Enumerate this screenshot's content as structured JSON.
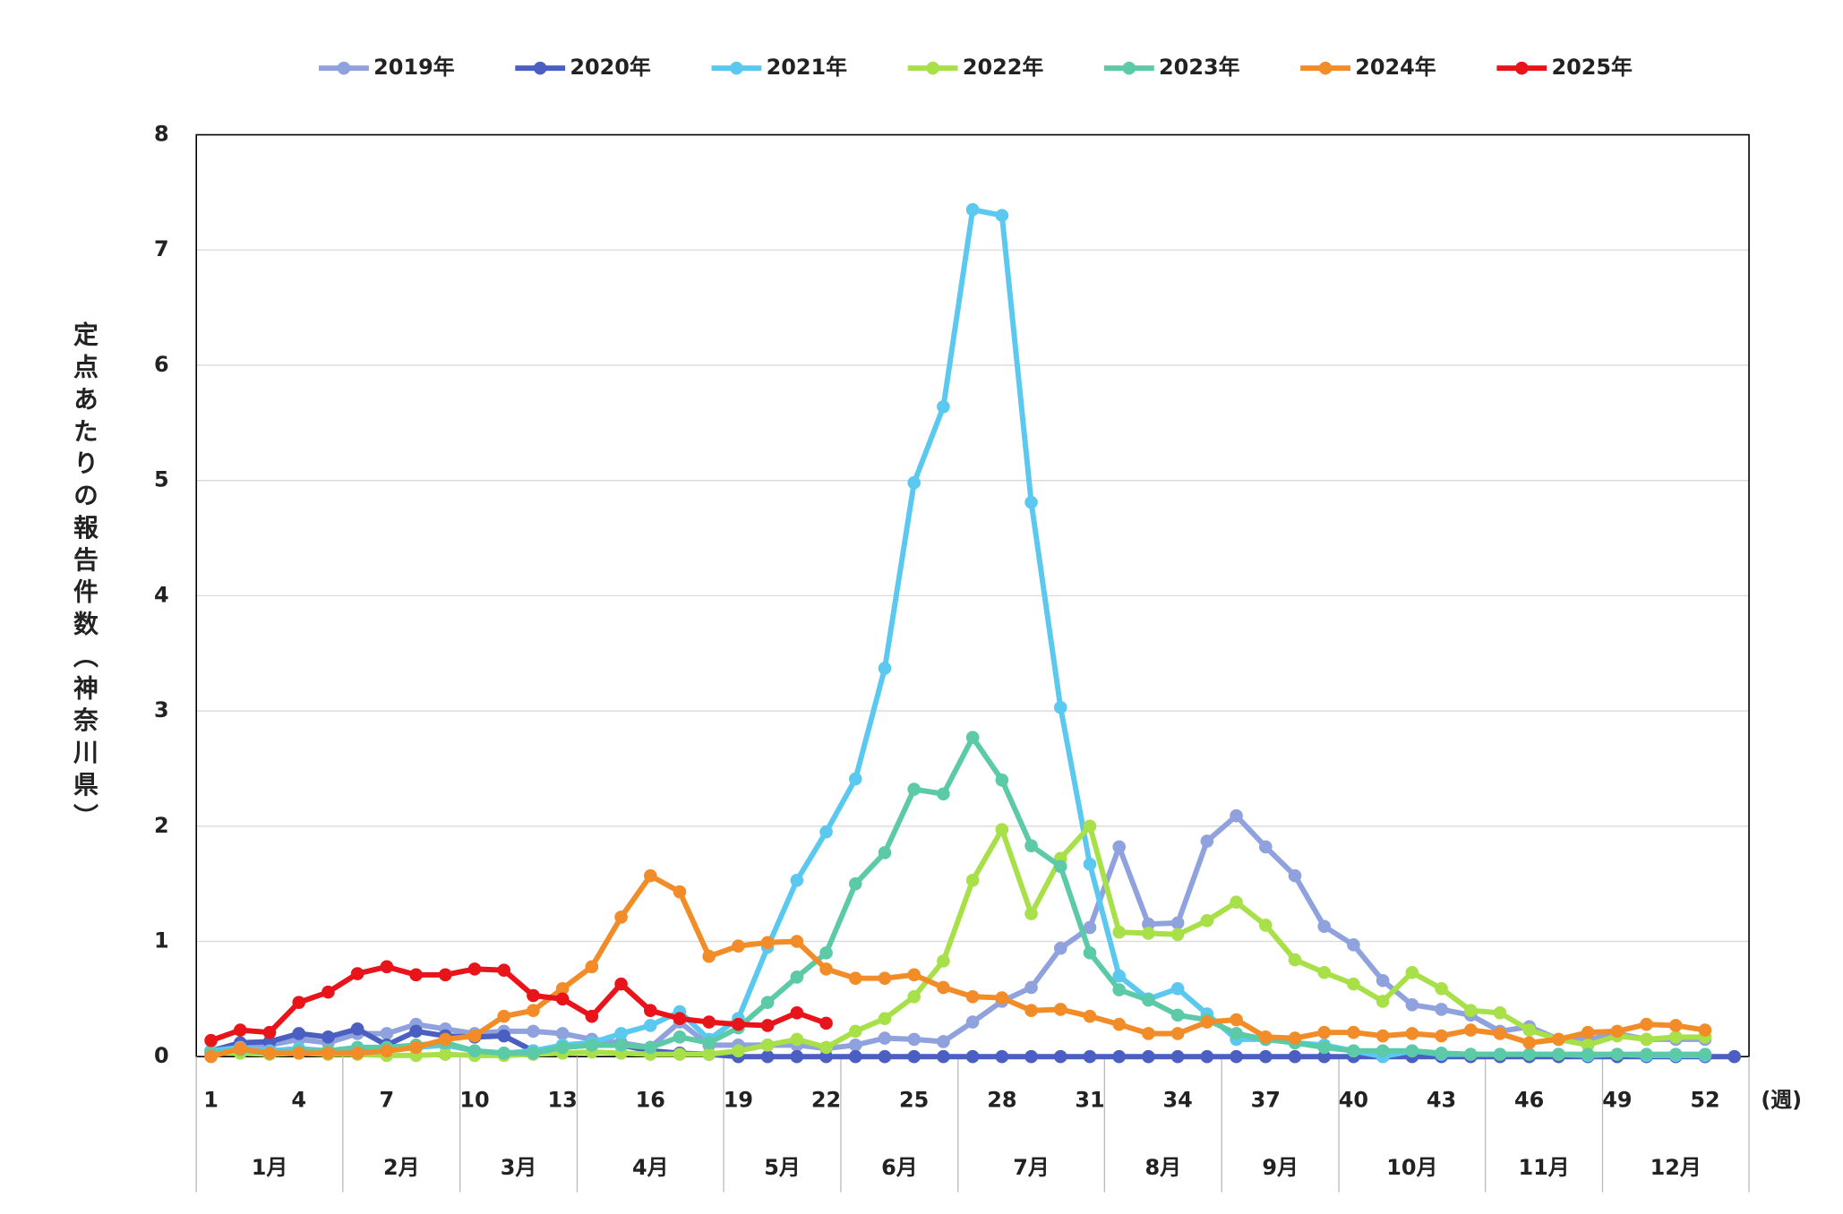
{
  "chart_data": {
    "type": "line",
    "y_label": "定点あたりの報告件数（神奈川県）",
    "x_unit": "(週)",
    "categories": [
      "1",
      null,
      null,
      "4",
      null,
      null,
      "7",
      null,
      null,
      "10",
      null,
      null,
      "13",
      null,
      null,
      "16",
      null,
      null,
      "19",
      null,
      null,
      "22",
      null,
      null,
      "25",
      null,
      null,
      "28",
      null,
      null,
      "31",
      null,
      null,
      "34",
      null,
      null,
      "37",
      null,
      null,
      "40",
      null,
      null,
      "43",
      null,
      null,
      "46",
      null,
      null,
      "49",
      null,
      null,
      "52",
      null
    ],
    "months": [
      "1月",
      "2月",
      "3月",
      "4月",
      "5月",
      "6月",
      "7月",
      "8月",
      "9月",
      "10月",
      "11月",
      "12月"
    ],
    "ylim": [
      0,
      8
    ],
    "yticks": [
      0,
      1,
      2,
      3,
      4,
      5,
      6,
      7,
      8
    ],
    "grid": true,
    "legend": "top",
    "series": [
      {
        "name": "2019年",
        "color": "#8fa2dd",
        "values": [
          0.05,
          0.1,
          0.1,
          0.15,
          0.12,
          0.2,
          0.2,
          0.28,
          0.24,
          0.2,
          0.22,
          0.22,
          0.2,
          0.15,
          0.12,
          0.08,
          0.3,
          0.1,
          0.1,
          0.1,
          0.1,
          0.07,
          0.1,
          0.16,
          0.15,
          0.13,
          0.3,
          0.48,
          0.6,
          0.94,
          1.12,
          1.82,
          1.15,
          1.16,
          1.87,
          2.09,
          1.82,
          1.57,
          1.13,
          0.97,
          0.66,
          0.45,
          0.41,
          0.36,
          0.22,
          0.26,
          0.15,
          0.15,
          0.2,
          0.15,
          0.15,
          0.15,
          null
        ]
      },
      {
        "name": "2020年",
        "color": "#4a5fc1",
        "values": [
          0.05,
          0.12,
          0.13,
          0.2,
          0.17,
          0.24,
          0.1,
          0.22,
          0.18,
          0.17,
          0.18,
          0.05,
          0.08,
          0.1,
          0.1,
          0.05,
          0.03,
          0.02,
          0,
          0,
          0,
          0,
          0,
          0,
          0,
          0,
          0,
          0,
          0,
          0,
          0,
          0,
          0,
          0,
          0,
          0,
          0,
          0,
          0,
          0,
          0,
          0,
          0,
          0,
          0,
          0,
          0,
          0,
          0,
          0,
          0,
          0,
          0
        ]
      },
      {
        "name": "2021年",
        "color": "#5bc8f0",
        "values": [
          0.05,
          0.08,
          0.05,
          0.07,
          0.05,
          0.05,
          0.05,
          0.08,
          0.1,
          0.05,
          0.03,
          0.05,
          0.1,
          0.12,
          0.2,
          0.27,
          0.39,
          0.15,
          0.33,
          0.95,
          1.53,
          1.95,
          2.41,
          3.37,
          4.98,
          5.64,
          7.35,
          7.3,
          4.81,
          3.03,
          1.67,
          0.7,
          0.5,
          0.59,
          0.37,
          0.15,
          0.15,
          0.12,
          0.1,
          0.05,
          0,
          0.05,
          0.02,
          0.02,
          0.02,
          0.02,
          0.02,
          0.01,
          0.02,
          0.01,
          0.01,
          0.01,
          null
        ]
      },
      {
        "name": "2022年",
        "color": "#a8e04a",
        "values": [
          0.03,
          0.03,
          0.02,
          0.03,
          0.02,
          0.02,
          0.01,
          0.01,
          0.02,
          0.01,
          0.01,
          0.02,
          0.03,
          0.04,
          0.03,
          0.02,
          0.02,
          0.02,
          0.05,
          0.1,
          0.15,
          0.08,
          0.22,
          0.33,
          0.52,
          0.83,
          1.53,
          1.97,
          1.24,
          1.72,
          2.0,
          1.08,
          1.07,
          1.06,
          1.18,
          1.34,
          1.14,
          0.84,
          0.73,
          0.63,
          0.48,
          0.73,
          0.59,
          0.4,
          0.38,
          0.23,
          0.15,
          0.1,
          0.18,
          0.15,
          0.17,
          0.17,
          null
        ]
      },
      {
        "name": "2023年",
        "color": "#5cc9a7",
        "values": [
          0.03,
          0.06,
          0.03,
          0.05,
          0.05,
          0.08,
          0.08,
          0.1,
          0.12,
          0.05,
          0.03,
          0.03,
          0.08,
          0.1,
          0.1,
          0.08,
          0.17,
          0.12,
          0.25,
          0.47,
          0.69,
          0.9,
          1.5,
          1.77,
          2.32,
          2.28,
          2.77,
          2.4,
          1.83,
          1.65,
          0.9,
          0.58,
          0.49,
          0.36,
          0.32,
          0.2,
          0.15,
          0.12,
          0.08,
          0.05,
          0.05,
          0.05,
          0.03,
          0.02,
          0.02,
          0.02,
          0.02,
          0.02,
          0.02,
          0.02,
          0.02,
          0.02,
          null
        ]
      },
      {
        "name": "2024年",
        "color": "#f28c28",
        "values": [
          0,
          0.07,
          0.03,
          0.03,
          0.03,
          0.03,
          0.05,
          0.08,
          0.15,
          0.18,
          0.35,
          0.4,
          0.59,
          0.78,
          1.21,
          1.57,
          1.43,
          0.87,
          0.96,
          0.99,
          1.0,
          0.76,
          0.68,
          0.68,
          0.71,
          0.6,
          0.52,
          0.51,
          0.4,
          0.41,
          0.35,
          0.28,
          0.2,
          0.2,
          0.3,
          0.32,
          0.17,
          0.16,
          0.21,
          0.21,
          0.18,
          0.2,
          0.18,
          0.23,
          0.2,
          0.12,
          0.15,
          0.21,
          0.22,
          0.28,
          0.27,
          0.23,
          null
        ]
      },
      {
        "name": "2025年",
        "color": "#e8141a",
        "values": [
          0.14,
          0.23,
          0.21,
          0.47,
          0.56,
          0.72,
          0.78,
          0.71,
          0.71,
          0.76,
          0.75,
          0.53,
          0.5,
          0.35,
          0.63,
          0.4,
          0.33,
          0.3,
          0.28,
          0.27,
          0.38,
          0.29,
          null,
          null,
          null,
          null,
          null,
          null,
          null,
          null,
          null,
          null,
          null,
          null,
          null,
          null,
          null,
          null,
          null,
          null,
          null,
          null,
          null,
          null,
          null,
          null,
          null,
          null,
          null,
          null,
          null,
          null,
          null
        ]
      }
    ]
  }
}
